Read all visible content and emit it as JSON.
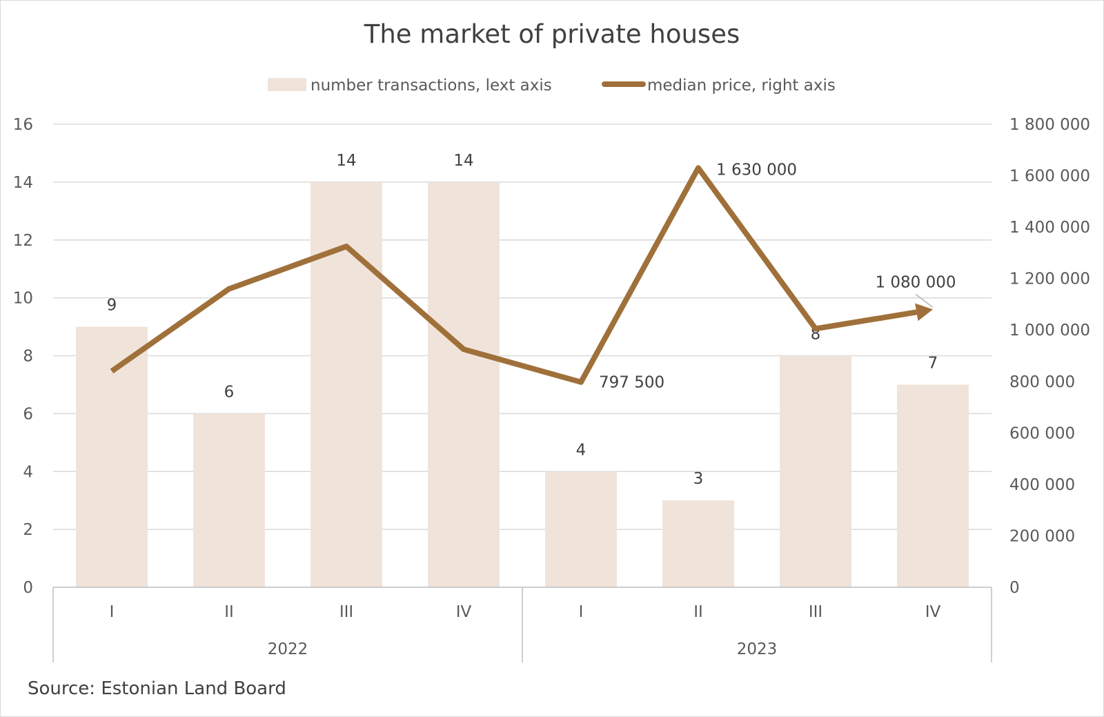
{
  "chart_data": {
    "type": "bar",
    "title": "The market of private houses",
    "source": "Source: Estonian Land Board",
    "groups": [
      {
        "label": "2022",
        "categories": [
          "I",
          "II",
          "III",
          "IV"
        ]
      },
      {
        "label": "2023",
        "categories": [
          "I",
          "II",
          "III",
          "IV"
        ]
      }
    ],
    "categories": [
      "I",
      "II",
      "III",
      "IV",
      "I",
      "II",
      "III",
      "IV"
    ],
    "series": [
      {
        "name": "number transactions, lext axis",
        "type": "bar",
        "axis": "left",
        "color": "#f0e3da",
        "values": [
          9,
          6,
          14,
          14,
          4,
          3,
          8,
          7
        ],
        "data_labels": [
          "9",
          "6",
          "14",
          "14",
          "4",
          "3",
          "8",
          "7"
        ]
      },
      {
        "name": "median price, right axis",
        "type": "line",
        "axis": "right",
        "color": "#a0703a",
        "values": [
          840000,
          1160000,
          1325000,
          925000,
          797500,
          1630000,
          1005000,
          1080000
        ],
        "data_labels": [
          "",
          "",
          "",
          "",
          "797 500",
          "1 630 000",
          "",
          "1 080 000"
        ]
      }
    ],
    "y_left": {
      "ylim": [
        0,
        16
      ],
      "ticks": [
        0,
        2,
        4,
        6,
        8,
        10,
        12,
        14,
        16
      ],
      "tick_labels": [
        "0",
        "2",
        "4",
        "6",
        "8",
        "10",
        "12",
        "14",
        "16"
      ]
    },
    "y_right": {
      "ylim": [
        0,
        1800000
      ],
      "ticks": [
        0,
        200000,
        400000,
        600000,
        800000,
        1000000,
        1200000,
        1400000,
        1600000,
        1800000
      ],
      "tick_labels": [
        "0",
        "200 000",
        "400 000",
        "600 000",
        "800 000",
        "1 000 000",
        "1 200 000",
        "1 400 000",
        "1 600 000",
        "1 800 000"
      ]
    },
    "grid": true,
    "legend_position": "top-center"
  }
}
